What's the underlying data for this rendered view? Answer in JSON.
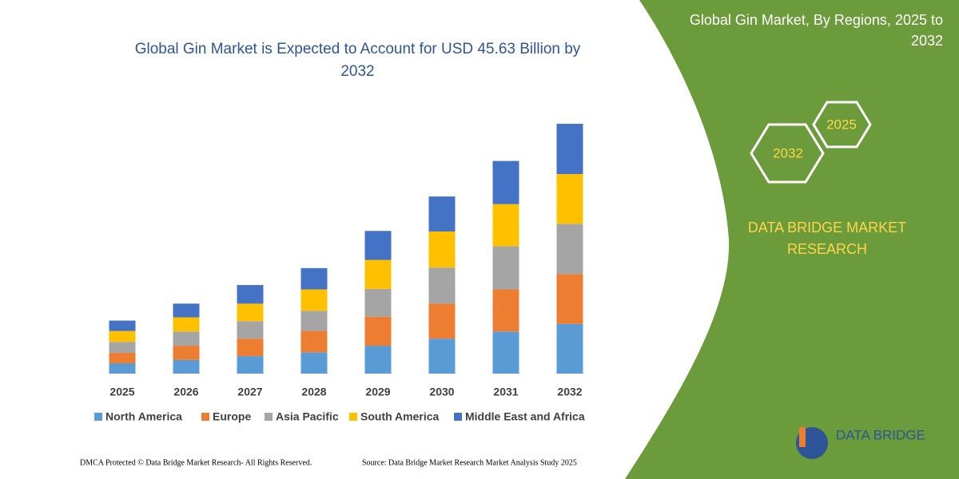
{
  "chart_data": {
    "type": "stacked-bar",
    "title": "Global Gin Market is Expected to Account for USD 45.63 Billion by 2032",
    "categories": [
      "2025",
      "2026",
      "2027",
      "2028",
      "2029",
      "2030",
      "2031",
      "2032"
    ],
    "series": [
      {
        "name": "North America",
        "color": "#5b9bd5",
        "values": [
          1.9,
          2.5,
          3.2,
          3.9,
          5.1,
          6.4,
          7.7,
          9.1
        ]
      },
      {
        "name": "Europe",
        "color": "#ed7d31",
        "values": [
          1.9,
          2.6,
          3.2,
          3.9,
          5.3,
          6.4,
          7.7,
          9.1
        ]
      },
      {
        "name": "Asia Pacific",
        "color": "#a5a5a5",
        "values": [
          2.0,
          2.6,
          3.2,
          3.7,
          5.1,
          6.6,
          7.9,
          9.2
        ]
      },
      {
        "name": "South America",
        "color": "#ffc000",
        "values": [
          2.0,
          2.6,
          3.2,
          3.9,
          5.3,
          6.6,
          7.7,
          9.1
        ]
      },
      {
        "name": "Middle East and Africa",
        "color": "#4472c4",
        "values": [
          1.9,
          2.5,
          3.4,
          3.9,
          5.3,
          6.4,
          7.9,
          9.2
        ]
      }
    ],
    "ylim": [
      0,
      46
    ]
  },
  "panel": {
    "title": "Global Gin Market, By Regions, 2025 to 2032",
    "hex_left": "2032",
    "hex_right": "2025",
    "brand": "DATA BRIDGE MARKET RESEARCH",
    "logo": "DATA BRIDGE"
  },
  "footer": {
    "left": "DMCA Protected © Data Bridge Market Research-  All Rights Reserved.",
    "right": "Source: Data Bridge Market Research  Market Analysis Study 2025"
  }
}
